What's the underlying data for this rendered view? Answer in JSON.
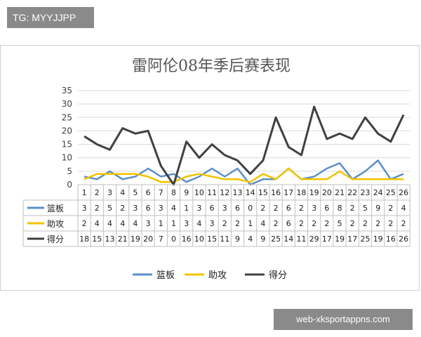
{
  "header_tag": "TG: MYYJJPP",
  "watermark": "web-xksportappns.com",
  "colors": {
    "rebounds": "#5b8fc7",
    "assists": "#f2c300",
    "points": "#404040"
  },
  "chart_data": {
    "type": "line",
    "title": "雷阿伦08年季后赛表现",
    "categories": [
      "1",
      "2",
      "3",
      "4",
      "5",
      "6",
      "7",
      "8",
      "9",
      "10",
      "11",
      "12",
      "13",
      "14",
      "15",
      "16",
      "17",
      "18",
      "19",
      "20",
      "21",
      "22",
      "23",
      "24",
      "25",
      "26"
    ],
    "ylim": [
      0,
      35
    ],
    "yticks": [
      0,
      5,
      10,
      15,
      20,
      25,
      30,
      35
    ],
    "grid": true,
    "legend": "bottom",
    "series": [
      {
        "name": "篮板",
        "key": "rebounds",
        "values": [
          3,
          2,
          5,
          2,
          3,
          6,
          3,
          4,
          1,
          3,
          6,
          3,
          6,
          0,
          2,
          2,
          6,
          2,
          3,
          6,
          8,
          2,
          5,
          9,
          2,
          4
        ]
      },
      {
        "name": "助攻",
        "key": "assists",
        "values": [
          2,
          4,
          4,
          4,
          4,
          3,
          1,
          1,
          3,
          4,
          3,
          2,
          2,
          1,
          4,
          2,
          6,
          2,
          2,
          2,
          5,
          2,
          2,
          2,
          2,
          2
        ]
      },
      {
        "name": "得分",
        "key": "points",
        "values": [
          18,
          15,
          13,
          21,
          19,
          20,
          7,
          0,
          16,
          10,
          15,
          11,
          9,
          4,
          9,
          25,
          14,
          11,
          29,
          17,
          19,
          17,
          25,
          19,
          16,
          26
        ]
      }
    ]
  }
}
